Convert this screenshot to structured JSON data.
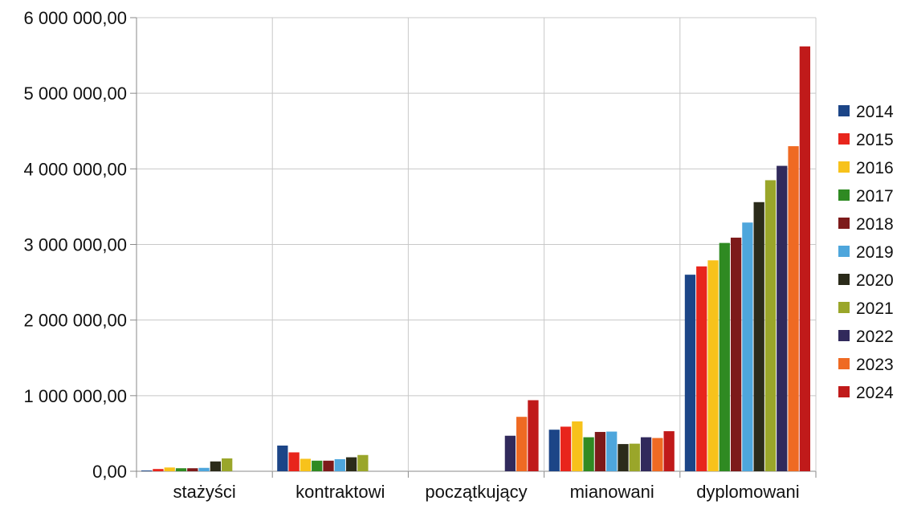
{
  "chart_data": {
    "type": "bar",
    "title": "",
    "xlabel": "",
    "ylabel": "",
    "ylim": [
      0,
      6000000
    ],
    "yticks": [
      0,
      1000000,
      2000000,
      3000000,
      4000000,
      5000000,
      6000000
    ],
    "ytick_labels": [
      "0,00",
      "1 000 000,00",
      "2 000 000,00",
      "3 000 000,00",
      "4 000 000,00",
      "5 000 000,00",
      "6 000 000,00"
    ],
    "grid": true,
    "legend_position": "right",
    "categories": [
      "stażyści",
      "kontraktowi",
      "początkujący",
      "mianowani",
      "dyplomowani"
    ],
    "series": [
      {
        "name": "2014",
        "color": "#1c4587",
        "values": [
          10000,
          340000,
          0,
          550000,
          2600000
        ]
      },
      {
        "name": "2015",
        "color": "#e8251c",
        "values": [
          30000,
          250000,
          0,
          590000,
          2710000
        ]
      },
      {
        "name": "2016",
        "color": "#f7c21b",
        "values": [
          50000,
          165000,
          0,
          660000,
          2790000
        ]
      },
      {
        "name": "2017",
        "color": "#2f8a22",
        "values": [
          40000,
          140000,
          0,
          450000,
          3020000
        ]
      },
      {
        "name": "2018",
        "color": "#7d1a1a",
        "values": [
          40000,
          140000,
          0,
          520000,
          3090000
        ]
      },
      {
        "name": "2019",
        "color": "#4ea6dc",
        "values": [
          45000,
          160000,
          0,
          525000,
          3290000
        ]
      },
      {
        "name": "2020",
        "color": "#2b2b1a",
        "values": [
          130000,
          185000,
          0,
          360000,
          3560000
        ]
      },
      {
        "name": "2021",
        "color": "#9aa62a",
        "values": [
          170000,
          215000,
          0,
          365000,
          3850000
        ]
      },
      {
        "name": "2022",
        "color": "#312a5c",
        "values": [
          0,
          0,
          470000,
          450000,
          4040000
        ]
      },
      {
        "name": "2023",
        "color": "#ef6a23",
        "values": [
          0,
          0,
          720000,
          440000,
          4300000
        ]
      },
      {
        "name": "2024",
        "color": "#c01a1a",
        "values": [
          0,
          0,
          940000,
          530000,
          5620000
        ]
      }
    ]
  }
}
